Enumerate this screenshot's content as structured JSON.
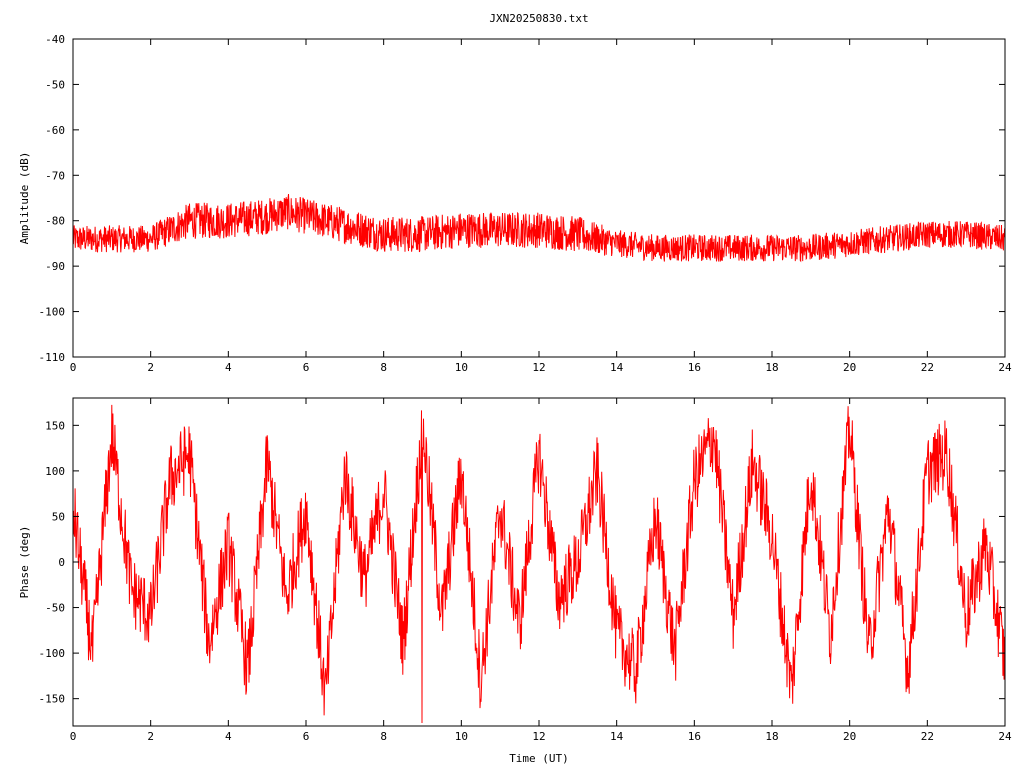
{
  "chart_data": [
    {
      "type": "line",
      "title": "JXN20250830.txt",
      "xlabel": "",
      "ylabel": "Amplitude (dB)",
      "xlim": [
        0,
        24
      ],
      "ylim": [
        -110,
        -40
      ],
      "x_ticks": [
        0,
        2,
        4,
        6,
        8,
        10,
        12,
        14,
        16,
        18,
        20,
        22,
        24
      ],
      "y_ticks": [
        -110,
        -100,
        -90,
        -80,
        -70,
        -60,
        -50,
        -40
      ],
      "x_tick_labels": [
        "0",
        "2",
        "4",
        "6",
        "8",
        "10",
        "12",
        "14",
        "16",
        "18",
        "20",
        "22",
        "24"
      ],
      "y_tick_labels": [
        "-110",
        "-100",
        "-90",
        "-80",
        "-70",
        "-60",
        "-50",
        "-40"
      ],
      "color": "#ff0000",
      "grid": false,
      "series": [
        {
          "x": [
            0,
            1,
            2,
            3,
            4,
            5,
            5.5,
            6,
            7,
            8,
            9,
            10,
            11,
            12,
            13,
            14,
            15,
            16,
            17,
            18,
            19,
            20,
            21,
            22,
            23,
            24
          ],
          "values": [
            -84,
            -84,
            -84,
            -80,
            -80,
            -79,
            -78,
            -79,
            -81,
            -83,
            -83,
            -82,
            -82,
            -82,
            -83,
            -85,
            -86,
            -86,
            -86,
            -86,
            -86,
            -85,
            -84,
            -83,
            -83,
            -84
          ],
          "spread": [
            3,
            3,
            3,
            4,
            4,
            4,
            4,
            4,
            4,
            4,
            4,
            4,
            4,
            4,
            4,
            3,
            3,
            3,
            3,
            3,
            3,
            3,
            3,
            3,
            3,
            3
          ]
        }
      ]
    },
    {
      "type": "line",
      "title": "",
      "xlabel": "Time (UT)",
      "ylabel": "Phase (deg)",
      "xlim": [
        0,
        24
      ],
      "ylim": [
        -180,
        180
      ],
      "x_ticks": [
        0,
        2,
        4,
        6,
        8,
        10,
        12,
        14,
        16,
        18,
        20,
        22,
        24
      ],
      "y_ticks": [
        -150,
        -100,
        -50,
        0,
        50,
        100,
        150
      ],
      "x_tick_labels": [
        "0",
        "2",
        "4",
        "6",
        "8",
        "10",
        "12",
        "14",
        "16",
        "18",
        "20",
        "22",
        "24"
      ],
      "y_tick_labels": [
        "-150",
        "-100",
        "-50",
        "0",
        "50",
        "100",
        "150"
      ],
      "color": "#ff0000",
      "grid": false,
      "series": [
        {
          "x": [
            0,
            0.5,
            1,
            1.5,
            2,
            2.5,
            3,
            3.5,
            4,
            4.5,
            5,
            5.5,
            6,
            6.5,
            7,
            7.5,
            8,
            8.5,
            9,
            9.5,
            10,
            10.5,
            11,
            11.5,
            12,
            12.5,
            13,
            13.5,
            14,
            14.5,
            15,
            15.5,
            16,
            16.5,
            17,
            17.5,
            18,
            18.5,
            19,
            19.5,
            20,
            20.5,
            21,
            21.5,
            22,
            22.5,
            23,
            23.5,
            24
          ],
          "values": [
            60,
            -100,
            140,
            -30,
            -60,
            90,
            120,
            -90,
            20,
            -120,
            110,
            -40,
            60,
            -150,
            100,
            -20,
            80,
            -90,
            150,
            -60,
            100,
            -130,
            60,
            -70,
            120,
            -40,
            0,
            100,
            -80,
            -120,
            50,
            -100,
            90,
            140,
            -60,
            110,
            30,
            -140,
            100,
            -80,
            150,
            -100,
            60,
            -120,
            100,
            120,
            -60,
            20,
            -110
          ]
        }
      ]
    }
  ]
}
